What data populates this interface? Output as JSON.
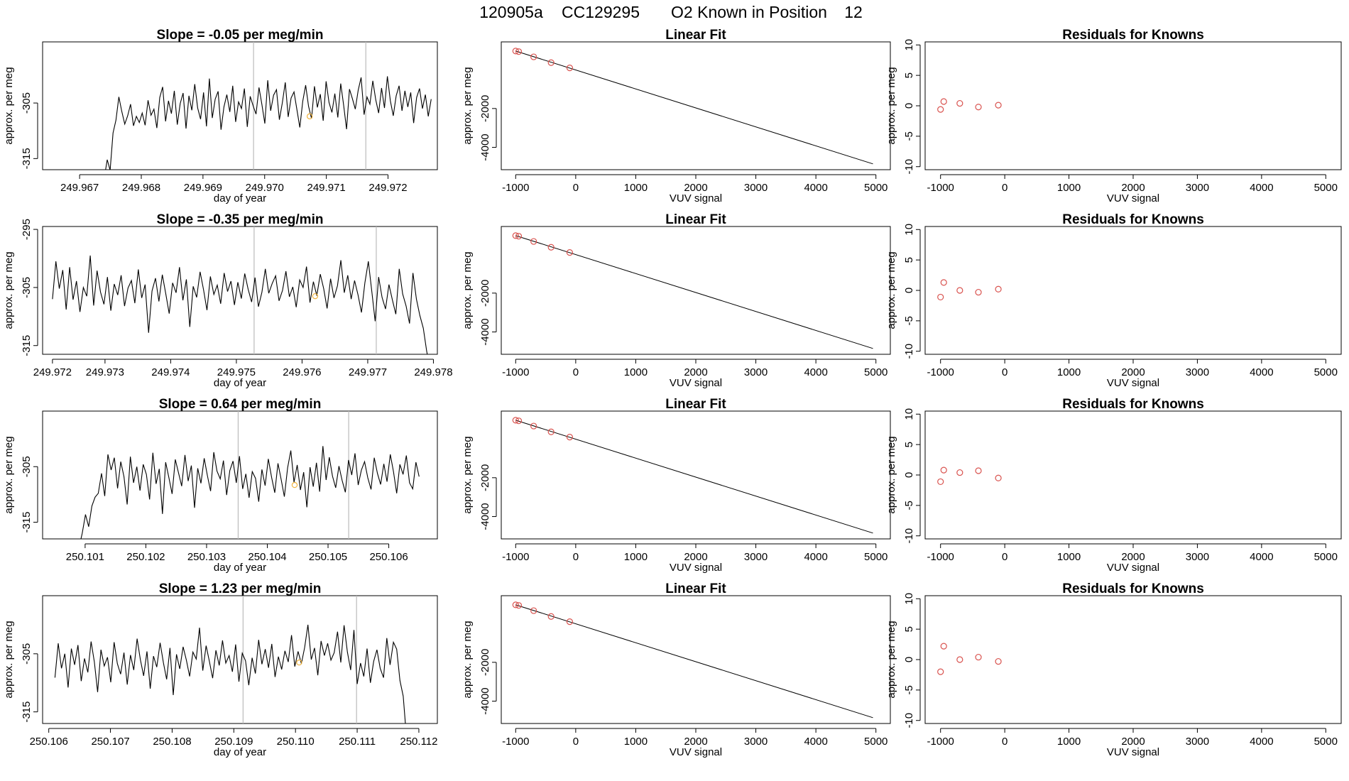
{
  "figure": {
    "title_parts": [
      "120905a",
      "CC129295",
      "O2 Known in Position",
      "12"
    ],
    "series_color": "#000000",
    "marker_color": "#d9534f",
    "highlight_color": "#f0b23c",
    "vline_color": "#bbbbbb"
  },
  "chart_data": [
    {
      "type": "line",
      "panel": "time-series-1",
      "title": "Slope =  -0.05  per meg/min",
      "xlabel": "day of year",
      "ylabel": "approx. per meg",
      "xlim": [
        249.9664,
        249.9728
      ],
      "ylim": [
        -317,
        -294
      ],
      "xticks": [
        249.967,
        249.968,
        249.969,
        249.97,
        249.971,
        249.972
      ],
      "xtick_labels": [
        "249.967",
        "249.968",
        "249.969",
        "249.970",
        "249.971",
        "249.972"
      ],
      "yticks": [
        -315,
        -305
      ],
      "ytick_labels": [
        "-315",
        "-305"
      ],
      "x_start": 249.9674,
      "x_end": 249.9727,
      "series_values": [
        -318.5,
        -315.2,
        -317.1,
        -310.4,
        -308.1,
        -303.9,
        -306.5,
        -308.8,
        -307.3,
        -305.2,
        -309.1,
        -307.4,
        -308.5,
        -306.8,
        -309.0,
        -304.5,
        -307.2,
        -306.1,
        -309.5,
        -304.0,
        -302.1,
        -308.3,
        -304.6,
        -306.9,
        -302.8,
        -308.9,
        -305.1,
        -303.2,
        -309.6,
        -303.7,
        -306.3,
        -301.6,
        -305.9,
        -307.9,
        -303.1,
        -309.2,
        -300.6,
        -307.7,
        -304.3,
        -302.9,
        -309.8,
        -305.7,
        -303.5,
        -306.6,
        -301.9,
        -308.4,
        -304.8,
        -306.0,
        -302.4,
        -309.3,
        -303.8,
        -305.5,
        -307.0,
        -302.2,
        -305.3,
        -308.7,
        -300.9,
        -306.4,
        -303.6,
        -302.6,
        -308.0,
        -305.0,
        -301.3,
        -307.5,
        -304.1,
        -303.0,
        -306.2,
        -309.4,
        -304.7,
        -301.8,
        -305.6,
        -307.8,
        -302.0,
        -305.8,
        -303.4,
        -308.2,
        -301.1,
        -304.9,
        -306.7,
        -303.3,
        -307.6,
        -301.5,
        -305.4,
        -309.7,
        -302.5,
        -304.2,
        -306.1,
        -302.7,
        -300.4,
        -307.1,
        -303.9,
        -305.2,
        -301.0,
        -304.4,
        -306.8,
        -302.3,
        -305.9,
        -300.2,
        -304.6,
        -307.3,
        -303.7,
        -301.9,
        -306.4,
        -302.8,
        -305.7,
        -303.1,
        -308.6,
        -304.0,
        -302.4,
        -306.0,
        -303.5,
        -307.4,
        -304.3
      ],
      "vlines": [
        249.96982,
        249.97164
      ],
      "highlight_point": [
        249.97073,
        -307.4
      ]
    },
    {
      "type": "line",
      "panel": "linear-fit-1",
      "title": "Linear Fit",
      "xlabel": "VUV signal",
      "ylabel": "approx. per meg",
      "xlim": [
        -1240,
        5240
      ],
      "ylim": [
        -5150,
        1430
      ],
      "xticks": [
        -1000,
        0,
        1000,
        2000,
        3000,
        4000,
        5000
      ],
      "xtick_labels": [
        "-1000",
        "0",
        "1000",
        "2000",
        "3000",
        "4000",
        "5000"
      ],
      "yticks": [
        -4000,
        -2000
      ],
      "ytick_labels": [
        "-4000",
        "-2000"
      ],
      "line": [
        [
          -1000,
          960
        ],
        [
          4950,
          -4850
        ]
      ],
      "points_x": [
        -1000,
        -950,
        -700,
        -410,
        -100
      ],
      "points_y": [
        960,
        930,
        660,
        360,
        90
      ]
    },
    {
      "type": "scatter",
      "panel": "residuals-1",
      "title": "Residuals for Knowns",
      "xlabel": "VUV signal",
      "ylabel": "approx. per meg",
      "xlim": [
        -1240,
        5240
      ],
      "ylim": [
        -10.5,
        10.5
      ],
      "xticks": [
        -1000,
        0,
        1000,
        2000,
        3000,
        4000,
        5000
      ],
      "xtick_labels": [
        "-1000",
        "0",
        "1000",
        "2000",
        "3000",
        "4000",
        "5000"
      ],
      "yticks": [
        -10,
        -5,
        0,
        5,
        10
      ],
      "ytick_labels": [
        "-10",
        "-5",
        "0",
        "5",
        "10"
      ],
      "points_x": [
        -1000,
        -950,
        -700,
        -410,
        -100
      ],
      "points_y": [
        -0.6,
        0.7,
        0.4,
        -0.2,
        0.1
      ]
    },
    {
      "type": "line",
      "panel": "time-series-2",
      "title": "Slope =  -0.35  per meg/min",
      "xlabel": "day of year",
      "ylabel": "approx. per meg",
      "xlim": [
        249.97205,
        249.97806
      ],
      "ylim": [
        -316.5,
        -294.5
      ],
      "xticks": [
        249.9722,
        249.973,
        249.974,
        249.975,
        249.976,
        249.977,
        249.978
      ],
      "xtick_labels": [
        "249.972",
        "249.973",
        "249.974",
        "249.975",
        "249.976",
        "249.977",
        "249.978"
      ],
      "yticks": [
        -315,
        -305,
        -295
      ],
      "ytick_labels": [
        "-315",
        "-305",
        "-295"
      ],
      "x_start": 249.9722,
      "x_end": 249.97795,
      "series_values": [
        -307.0,
        -300.5,
        -305.2,
        -302.0,
        -308.8,
        -301.5,
        -307.1,
        -303.9,
        -309.2,
        -305.0,
        -306.5,
        -299.5,
        -308.1,
        -302.1,
        -305.8,
        -307.9,
        -303.2,
        -309.0,
        -304.4,
        -306.3,
        -302.9,
        -308.2,
        -305.1,
        -303.8,
        -307.7,
        -301.9,
        -306.8,
        -304.5,
        -312.8,
        -305.6,
        -303.4,
        -307.4,
        -302.8,
        -306.1,
        -309.5,
        -304.2,
        -305.9,
        -301.5,
        -307.2,
        -303.6,
        -311.8,
        -304.8,
        -306.7,
        -302.3,
        -305.4,
        -308.9,
        -303.1,
        -306.2,
        -304.6,
        -307.8,
        -302.5,
        -305.7,
        -303.9,
        -308.0,
        -304.1,
        -306.9,
        -302.6,
        -305.3,
        -307.5,
        -303.3,
        -308.3,
        -305.8,
        -301.8,
        -306.0,
        -304.3,
        -303.0,
        -307.3,
        -305.5,
        -302.2,
        -306.6,
        -304.9,
        -308.4,
        -303.7,
        -305.0,
        -301.4,
        -307.6,
        -304.0,
        -306.4,
        -302.7,
        -305.2,
        -308.6,
        -303.5,
        -306.8,
        -304.7,
        -300.3,
        -305.9,
        -302.9,
        -307.0,
        -303.8,
        -306.3,
        -309.3,
        -304.2,
        -300.5,
        -305.6,
        -310.8,
        -303.2,
        -306.7,
        -308.7,
        -304.5,
        -307.1,
        -309.6,
        -301.8,
        -306.1,
        -308.2,
        -311.2,
        -302.5,
        -307.0,
        -309.8,
        -312.0,
        -316.0,
        -319.0
      ],
      "vlines": [
        249.97527,
        249.97713
      ],
      "highlight_point": [
        249.9762,
        -306.5
      ]
    },
    {
      "type": "line",
      "panel": "linear-fit-2",
      "title": "Linear Fit",
      "xlabel": "VUV signal",
      "ylabel": "approx. per meg",
      "xlim": [
        -1240,
        5240
      ],
      "ylim": [
        -5150,
        1430
      ],
      "xticks": [
        -1000,
        0,
        1000,
        2000,
        3000,
        4000,
        5000
      ],
      "xtick_labels": [
        "-1000",
        "0",
        "1000",
        "2000",
        "3000",
        "4000",
        "5000"
      ],
      "yticks": [
        -4000,
        -2000
      ],
      "ytick_labels": [
        "-4000",
        "-2000"
      ],
      "line": [
        [
          -1000,
          960
        ],
        [
          4950,
          -4850
        ]
      ],
      "points_x": [
        -1000,
        -950,
        -700,
        -410,
        -100
      ],
      "points_y": [
        960,
        930,
        660,
        360,
        90
      ]
    },
    {
      "type": "scatter",
      "panel": "residuals-2",
      "title": "Residuals for Knowns",
      "xlabel": "VUV signal",
      "ylabel": "approx. per meg",
      "xlim": [
        -1240,
        5240
      ],
      "ylim": [
        -10.5,
        10.5
      ],
      "xticks": [
        -1000,
        0,
        1000,
        2000,
        3000,
        4000,
        5000
      ],
      "xtick_labels": [
        "-1000",
        "0",
        "1000",
        "2000",
        "3000",
        "4000",
        "5000"
      ],
      "yticks": [
        -10,
        -5,
        0,
        5,
        10
      ],
      "ytick_labels": [
        "-10",
        "-5",
        "0",
        "5",
        "10"
      ],
      "points_x": [
        -1000,
        -950,
        -700,
        -410,
        -100
      ],
      "points_y": [
        -1.1,
        1.3,
        0.0,
        -0.3,
        0.2
      ]
    },
    {
      "type": "line",
      "panel": "time-series-3",
      "title": "Slope =  0.64  per meg/min",
      "xlabel": "day of year",
      "ylabel": "approx. per meg",
      "xlim": [
        250.1003,
        250.1068
      ],
      "ylim": [
        -318,
        -295
      ],
      "xticks": [
        250.101,
        250.102,
        250.103,
        250.104,
        250.105,
        250.106
      ],
      "xtick_labels": [
        "250.101",
        "250.102",
        "250.103",
        "250.104",
        "250.105",
        "250.106"
      ],
      "yticks": [
        -315,
        -305
      ],
      "ytick_labels": [
        "-315",
        "-305"
      ],
      "x_start": 250.1009,
      "x_end": 250.1065,
      "series_values": [
        -319.5,
        -317.0,
        -313.6,
        -315.8,
        -312.1,
        -310.5,
        -309.8,
        -306.2,
        -310.3,
        -302.8,
        -305.6,
        -303.4,
        -308.9,
        -304.1,
        -306.8,
        -311.8,
        -303.2,
        -307.9,
        -305.0,
        -309.3,
        -304.6,
        -306.4,
        -310.9,
        -302.5,
        -308.1,
        -305.4,
        -313.5,
        -304.2,
        -307.0,
        -309.9,
        -303.7,
        -306.1,
        -308.5,
        -302.9,
        -307.6,
        -304.8,
        -312.4,
        -305.3,
        -308.0,
        -303.5,
        -306.6,
        -309.4,
        -302.4,
        -305.8,
        -307.2,
        -303.9,
        -310.1,
        -305.7,
        -304.0,
        -307.9,
        -303.1,
        -309.0,
        -306.3,
        -310.6,
        -305.9,
        -307.1,
        -311.3,
        -305.5,
        -308.4,
        -303.6,
        -306.9,
        -309.7,
        -304.4,
        -307.3,
        -310.4,
        -305.2,
        -302.1,
        -307.8,
        -304.7,
        -309.2,
        -306.0,
        -312.3,
        -305.1,
        -308.6,
        -304.3,
        -309.5,
        -301.3,
        -307.4,
        -303.3,
        -306.7,
        -308.8,
        -304.9,
        -307.5,
        -309.6,
        -303.8,
        -306.5,
        -302.6,
        -308.3,
        -305.6,
        -304.1,
        -307.0,
        -309.1,
        -303.4,
        -306.2,
        -308.2,
        -304.5,
        -307.7,
        -302.8,
        -305.9,
        -309.8,
        -304.6,
        -306.4,
        -303.0,
        -307.9,
        -309.0,
        -304.2,
        -306.8
      ],
      "vlines": [
        250.10352,
        250.10534
      ],
      "highlight_point": [
        250.10445,
        -308.3
      ]
    },
    {
      "type": "line",
      "panel": "linear-fit-3",
      "title": "Linear Fit",
      "xlabel": "VUV signal",
      "ylabel": "approx. per meg",
      "xlim": [
        -1240,
        5240
      ],
      "ylim": [
        -5150,
        1430
      ],
      "xticks": [
        -1000,
        0,
        1000,
        2000,
        3000,
        4000,
        5000
      ],
      "xtick_labels": [
        "-1000",
        "0",
        "1000",
        "2000",
        "3000",
        "4000",
        "5000"
      ],
      "yticks": [
        -4000,
        -2000
      ],
      "ytick_labels": [
        "-4000",
        "-2000"
      ],
      "line": [
        [
          -1000,
          960
        ],
        [
          4950,
          -4850
        ]
      ],
      "points_x": [
        -1000,
        -950,
        -700,
        -410,
        -100
      ],
      "points_y": [
        960,
        930,
        660,
        360,
        90
      ]
    },
    {
      "type": "scatter",
      "panel": "residuals-3",
      "title": "Residuals for Knowns",
      "xlabel": "VUV signal",
      "ylabel": "approx. per meg",
      "xlim": [
        -1240,
        5240
      ],
      "ylim": [
        -10.5,
        10.5
      ],
      "xticks": [
        -1000,
        0,
        1000,
        2000,
        3000,
        4000,
        5000
      ],
      "xtick_labels": [
        "-1000",
        "0",
        "1000",
        "2000",
        "3000",
        "4000",
        "5000"
      ],
      "yticks": [
        -10,
        -5,
        0,
        5,
        10
      ],
      "ytick_labels": [
        "-10",
        "-5",
        "0",
        "5",
        "10"
      ],
      "points_x": [
        -1000,
        -950,
        -700,
        -410,
        -100
      ],
      "points_y": [
        -1.1,
        0.8,
        0.4,
        0.7,
        -0.5
      ]
    },
    {
      "type": "line",
      "panel": "time-series-4",
      "title": "Slope =  1.23  per meg/min",
      "xlabel": "day of year",
      "ylabel": "approx. per meg",
      "xlim": [
        250.1059,
        250.1123
      ],
      "ylim": [
        -317,
        -295
      ],
      "xticks": [
        250.106,
        250.107,
        250.108,
        250.109,
        250.11,
        250.111,
        250.112
      ],
      "xtick_labels": [
        "250.106",
        "250.107",
        "250.108",
        "250.109",
        "250.110",
        "250.111",
        "250.112"
      ],
      "yticks": [
        -315,
        -305
      ],
      "ytick_labels": [
        "-315",
        "-305"
      ],
      "x_start": 250.1061,
      "x_end": 250.1118,
      "series_values": [
        -309.1,
        -303.2,
        -307.5,
        -305.0,
        -310.8,
        -304.1,
        -306.9,
        -303.5,
        -309.7,
        -305.8,
        -308.2,
        -302.9,
        -306.4,
        -311.6,
        -304.3,
        -307.1,
        -305.6,
        -309.9,
        -303.0,
        -306.7,
        -308.5,
        -304.8,
        -310.3,
        -305.2,
        -307.8,
        -302.4,
        -306.0,
        -308.8,
        -304.6,
        -311.0,
        -305.4,
        -307.3,
        -303.1,
        -306.5,
        -309.4,
        -304.0,
        -312.1,
        -305.1,
        -307.6,
        -303.8,
        -306.1,
        -308.9,
        -304.7,
        -305.9,
        -300.5,
        -307.9,
        -303.6,
        -306.3,
        -309.2,
        -304.4,
        -307.0,
        -302.7,
        -306.6,
        -305.3,
        -308.1,
        -303.4,
        -309.8,
        -304.9,
        -306.2,
        -310.4,
        -305.7,
        -308.4,
        -302.6,
        -306.8,
        -304.2,
        -307.4,
        -303.3,
        -309.0,
        -305.5,
        -307.7,
        -304.5,
        -306.4,
        -301.8,
        -307.2,
        -304.6,
        -306.7,
        -303.9,
        -300.0,
        -306.0,
        -304.0,
        -308.7,
        -302.8,
        -305.3,
        -303.2,
        -306.1,
        -304.8,
        -301.2,
        -306.5,
        -300.1,
        -304.7,
        -307.8,
        -300.9,
        -310.2,
        -306.6,
        -308.9,
        -304.1,
        -310.0,
        -306.3,
        -304.3,
        -307.5,
        -309.1,
        -302.3,
        -306.9,
        -303.0,
        -304.2,
        -309.6,
        -312.3,
        -319.5
      ],
      "vlines": [
        250.10915,
        250.11099
      ],
      "highlight_point": [
        250.11006,
        -306.5
      ]
    },
    {
      "type": "line",
      "panel": "linear-fit-4",
      "title": "Linear Fit",
      "xlabel": "VUV signal",
      "ylabel": "approx. per meg",
      "xlim": [
        -1240,
        5240
      ],
      "ylim": [
        -5150,
        1430
      ],
      "xticks": [
        -1000,
        0,
        1000,
        2000,
        3000,
        4000,
        5000
      ],
      "xtick_labels": [
        "-1000",
        "0",
        "1000",
        "2000",
        "3000",
        "4000",
        "5000"
      ],
      "yticks": [
        -4000,
        -2000
      ],
      "ytick_labels": [
        "-4000",
        "-2000"
      ],
      "line": [
        [
          -1000,
          960
        ],
        [
          4950,
          -4850
        ]
      ],
      "points_x": [
        -1000,
        -950,
        -700,
        -410,
        -100
      ],
      "points_y": [
        960,
        930,
        660,
        360,
        90
      ]
    },
    {
      "type": "scatter",
      "panel": "residuals-4",
      "title": "Residuals for Knowns",
      "xlabel": "VUV signal",
      "ylabel": "approx. per meg",
      "xlim": [
        -1240,
        5240
      ],
      "ylim": [
        -10.5,
        10.5
      ],
      "xticks": [
        -1000,
        0,
        1000,
        2000,
        3000,
        4000,
        5000
      ],
      "xtick_labels": [
        "-1000",
        "0",
        "1000",
        "2000",
        "3000",
        "4000",
        "5000"
      ],
      "yticks": [
        -10,
        -5,
        0,
        5,
        10
      ],
      "ytick_labels": [
        "-10",
        "-5",
        "0",
        "5",
        "10"
      ],
      "points_x": [
        -1000,
        -950,
        -700,
        -410,
        -100
      ],
      "points_y": [
        -2.0,
        2.2,
        0.0,
        0.4,
        -0.3
      ]
    }
  ]
}
